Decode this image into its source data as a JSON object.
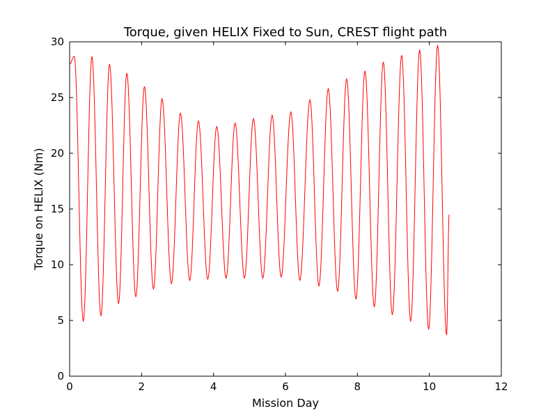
{
  "chart_data": {
    "type": "line",
    "title": "Torque, given HELIX Fixed to Sun, CREST flight path",
    "xlabel": "Mission Day",
    "ylabel": "Torque on HELIX (Nm)",
    "xlim": [
      0,
      12
    ],
    "ylim": [
      0,
      30
    ],
    "xticks": [
      0,
      2,
      4,
      6,
      8,
      10,
      12
    ],
    "yticks": [
      0,
      5,
      10,
      15,
      20,
      25,
      30
    ],
    "grid": false,
    "legend": "none",
    "series": [
      {
        "color": "#ff0000",
        "extrema": [
          [
            0.0,
            28.0
          ],
          [
            0.13,
            28.7
          ],
          [
            0.38,
            4.9
          ],
          [
            0.62,
            28.7
          ],
          [
            0.87,
            5.4
          ],
          [
            1.11,
            28.0
          ],
          [
            1.36,
            6.5
          ],
          [
            1.59,
            27.2
          ],
          [
            1.84,
            7.1
          ],
          [
            2.08,
            26.0
          ],
          [
            2.33,
            7.8
          ],
          [
            2.57,
            24.9
          ],
          [
            2.83,
            8.3
          ],
          [
            3.08,
            23.6
          ],
          [
            3.34,
            8.6
          ],
          [
            3.58,
            22.9
          ],
          [
            3.84,
            8.7
          ],
          [
            4.09,
            22.4
          ],
          [
            4.35,
            8.8
          ],
          [
            4.6,
            22.7
          ],
          [
            4.86,
            8.8
          ],
          [
            5.11,
            23.1
          ],
          [
            5.37,
            8.8
          ],
          [
            5.63,
            23.4
          ],
          [
            5.88,
            8.9
          ],
          [
            6.15,
            23.7
          ],
          [
            6.4,
            8.6
          ],
          [
            6.68,
            24.8
          ],
          [
            6.93,
            8.1
          ],
          [
            7.19,
            25.8
          ],
          [
            7.45,
            7.6
          ],
          [
            7.7,
            26.7
          ],
          [
            7.96,
            6.9
          ],
          [
            8.21,
            27.4
          ],
          [
            8.47,
            6.2
          ],
          [
            8.72,
            28.2
          ],
          [
            8.97,
            5.5
          ],
          [
            9.23,
            28.8
          ],
          [
            9.48,
            4.9
          ],
          [
            9.73,
            29.3
          ],
          [
            9.98,
            4.2
          ],
          [
            10.23,
            29.7
          ],
          [
            10.48,
            3.7
          ],
          [
            10.55,
            14.5
          ]
        ]
      }
    ]
  }
}
